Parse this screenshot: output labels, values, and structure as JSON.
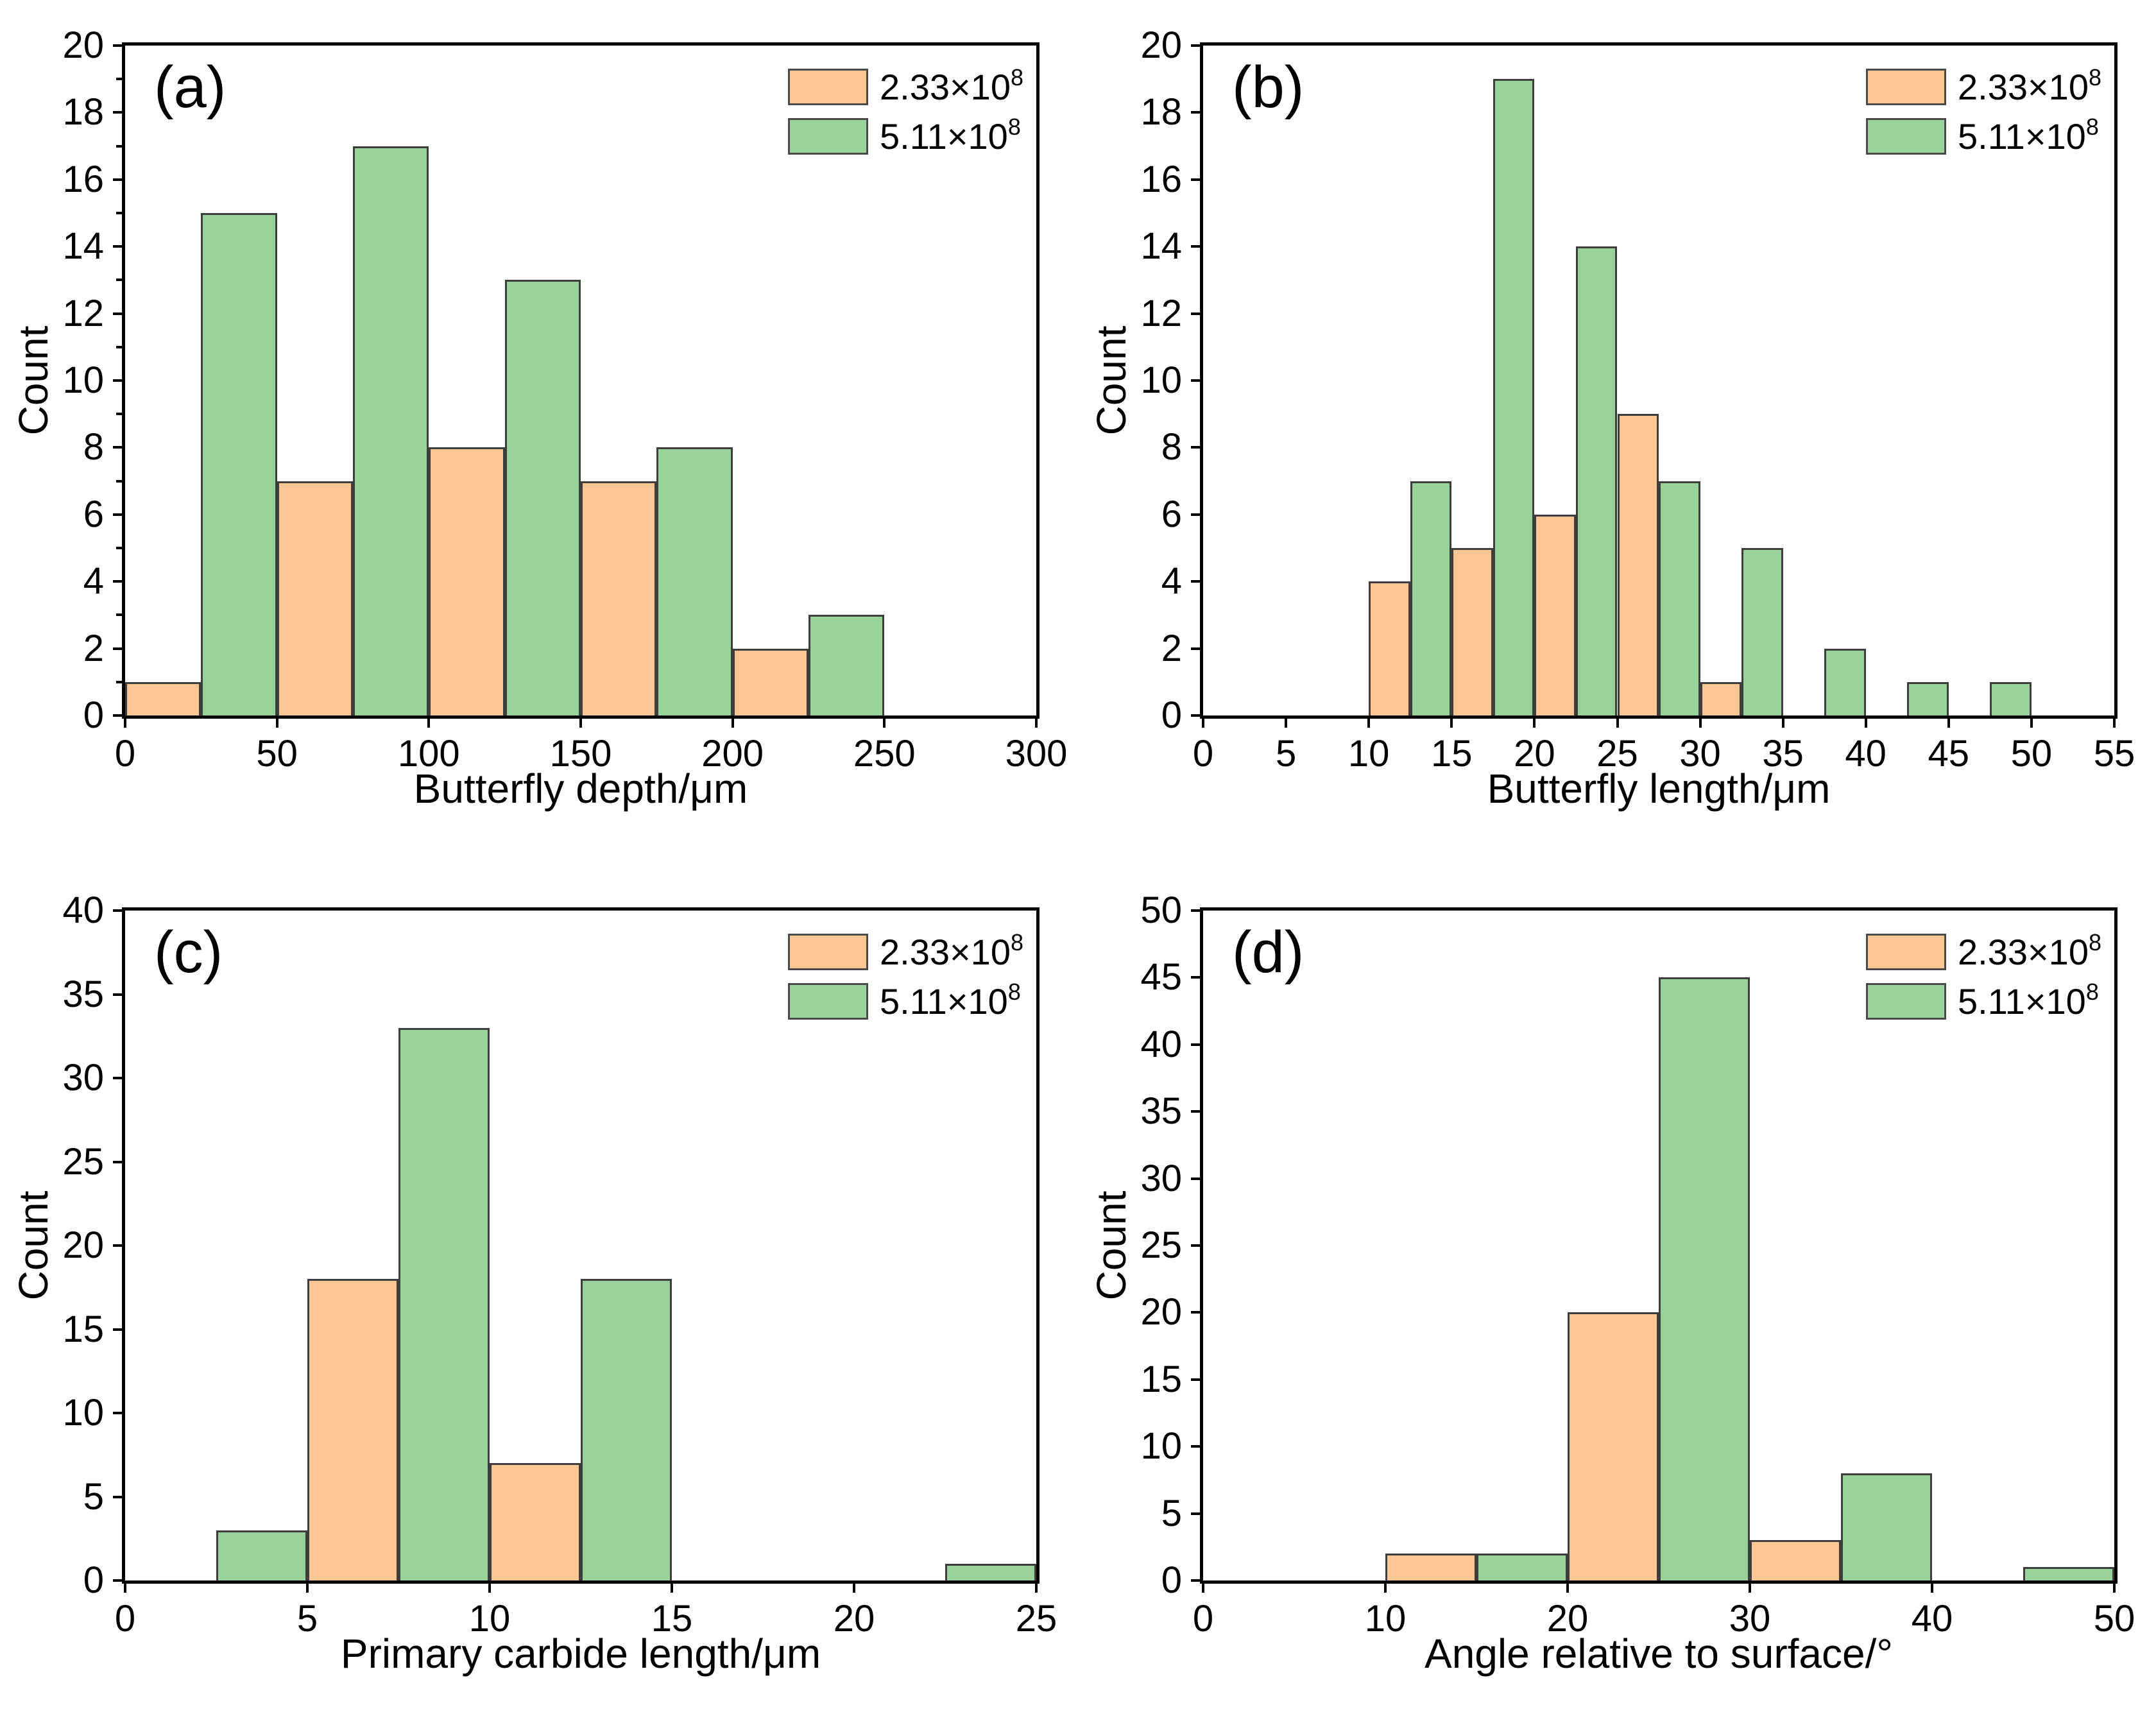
{
  "legend": {
    "series": [
      {
        "name": "2.33×10⁸",
        "label_base": "2.33×10",
        "label_exp": "8",
        "color": "#FAC794",
        "edge_color": "#3d3d3d",
        "swatch_edge": "#4a4a4a"
      },
      {
        "name": "5.11×10⁸",
        "label_base": "5.11×10",
        "label_exp": "8",
        "color": "#9AD39A",
        "edge_color": "#3d3d3d",
        "swatch_edge": "#4a4a4a"
      }
    ]
  },
  "chart_data": [
    {
      "type": "bar",
      "panel": "(a)",
      "xlabel": "Butterfly depth/μm",
      "ylabel": "Count",
      "xlim": [
        0,
        300
      ],
      "xticks": [
        0,
        50,
        100,
        150,
        200,
        250,
        300
      ],
      "ylim": [
        0,
        20
      ],
      "yticks": [
        0,
        2,
        4,
        6,
        8,
        10,
        12,
        14,
        16,
        18,
        20
      ],
      "y_minor_step": 1,
      "grid": false,
      "legend_position": "top-right",
      "series_names": [
        "2.33×10⁸",
        "5.11×10⁸"
      ],
      "bars": [
        {
          "series": 0,
          "x0": 0,
          "x1": 25,
          "count": 1
        },
        {
          "series": 1,
          "x0": 25,
          "x1": 50,
          "count": 15
        },
        {
          "series": 0,
          "x0": 50,
          "x1": 75,
          "count": 7
        },
        {
          "series": 1,
          "x0": 75,
          "x1": 100,
          "count": 17
        },
        {
          "series": 0,
          "x0": 100,
          "x1": 125,
          "count": 8
        },
        {
          "series": 1,
          "x0": 125,
          "x1": 150,
          "count": 13
        },
        {
          "series": 0,
          "x0": 150,
          "x1": 175,
          "count": 7
        },
        {
          "series": 1,
          "x0": 175,
          "x1": 200,
          "count": 8
        },
        {
          "series": 0,
          "x0": 200,
          "x1": 225,
          "count": 2
        },
        {
          "series": 1,
          "x0": 225,
          "x1": 250,
          "count": 3
        }
      ]
    },
    {
      "type": "bar",
      "panel": "(b)",
      "xlabel": "Butterfly length/μm",
      "ylabel": "Count",
      "xlim": [
        0,
        55
      ],
      "xticks": [
        0,
        5,
        10,
        15,
        20,
        25,
        30,
        35,
        40,
        45,
        50,
        55
      ],
      "ylim": [
        0,
        20
      ],
      "yticks": [
        0,
        2,
        4,
        6,
        8,
        10,
        12,
        14,
        16,
        18,
        20
      ],
      "y_minor_step": null,
      "grid": false,
      "legend_position": "top-right",
      "series_names": [
        "2.33×10⁸",
        "5.11×10⁸"
      ],
      "bars": [
        {
          "series": 0,
          "x0": 10,
          "x1": 12.5,
          "count": 4
        },
        {
          "series": 1,
          "x0": 12.5,
          "x1": 15,
          "count": 7
        },
        {
          "series": 0,
          "x0": 15,
          "x1": 17.5,
          "count": 5
        },
        {
          "series": 1,
          "x0": 17.5,
          "x1": 20,
          "count": 19
        },
        {
          "series": 0,
          "x0": 20,
          "x1": 22.5,
          "count": 6
        },
        {
          "series": 1,
          "x0": 22.5,
          "x1": 25,
          "count": 14
        },
        {
          "series": 0,
          "x0": 25,
          "x1": 27.5,
          "count": 9
        },
        {
          "series": 1,
          "x0": 27.5,
          "x1": 30,
          "count": 7
        },
        {
          "series": 0,
          "x0": 30,
          "x1": 32.5,
          "count": 1
        },
        {
          "series": 1,
          "x0": 32.5,
          "x1": 35,
          "count": 5
        },
        {
          "series": 1,
          "x0": 37.5,
          "x1": 40,
          "count": 2
        },
        {
          "series": 1,
          "x0": 42.5,
          "x1": 45,
          "count": 1
        },
        {
          "series": 1,
          "x0": 47.5,
          "x1": 50,
          "count": 1
        }
      ]
    },
    {
      "type": "bar",
      "panel": "(c)",
      "xlabel": "Primary carbide length/μm",
      "ylabel": "Count",
      "xlim": [
        0,
        25
      ],
      "xticks": [
        0,
        5,
        10,
        15,
        20,
        25
      ],
      "ylim": [
        0,
        40
      ],
      "yticks": [
        0,
        5,
        10,
        15,
        20,
        25,
        30,
        35,
        40
      ],
      "y_minor_step": null,
      "grid": false,
      "legend_position": "top-right",
      "series_names": [
        "2.33×10⁸",
        "5.11×10⁸"
      ],
      "bars": [
        {
          "series": 1,
          "x0": 2.5,
          "x1": 5,
          "count": 3
        },
        {
          "series": 0,
          "x0": 5,
          "x1": 7.5,
          "count": 18
        },
        {
          "series": 1,
          "x0": 7.5,
          "x1": 10,
          "count": 33
        },
        {
          "series": 0,
          "x0": 10,
          "x1": 12.5,
          "count": 7
        },
        {
          "series": 1,
          "x0": 12.5,
          "x1": 15,
          "count": 18
        },
        {
          "series": 1,
          "x0": 22.5,
          "x1": 25,
          "count": 1
        }
      ]
    },
    {
      "type": "bar",
      "panel": "(d)",
      "xlabel": "Angle relative to surface/°",
      "ylabel": "Count",
      "xlim": [
        0,
        50
      ],
      "xticks": [
        0,
        10,
        20,
        30,
        40,
        50
      ],
      "ylim": [
        0,
        50
      ],
      "yticks": [
        0,
        5,
        10,
        15,
        20,
        25,
        30,
        35,
        40,
        45,
        50
      ],
      "y_minor_step": null,
      "grid": false,
      "legend_position": "top-right",
      "series_names": [
        "2.33×10⁸",
        "5.11×10⁸"
      ],
      "bars": [
        {
          "series": 0,
          "x0": 10,
          "x1": 15,
          "count": 2
        },
        {
          "series": 1,
          "x0": 15,
          "x1": 20,
          "count": 2
        },
        {
          "series": 0,
          "x0": 20,
          "x1": 25,
          "count": 20
        },
        {
          "series": 1,
          "x0": 25,
          "x1": 30,
          "count": 45
        },
        {
          "series": 0,
          "x0": 30,
          "x1": 35,
          "count": 3
        },
        {
          "series": 1,
          "x0": 35,
          "x1": 40,
          "count": 8
        },
        {
          "series": 1,
          "x0": 45,
          "x1": 50,
          "count": 1
        }
      ]
    }
  ]
}
